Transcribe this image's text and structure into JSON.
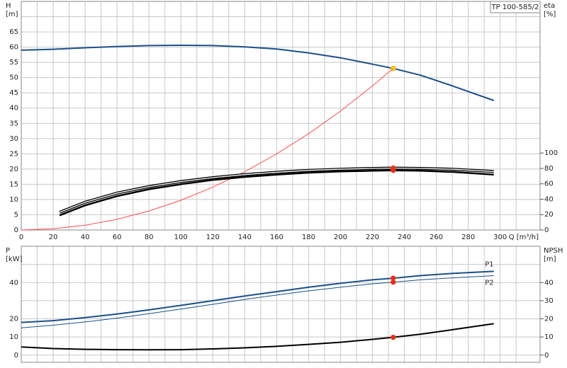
{
  "chart_data": [
    {
      "type": "line",
      "title": "TP 100-585/2",
      "y_label": [
        "H",
        "[m]"
      ],
      "y2_label": [
        "eta",
        "[%]"
      ],
      "x_label": "Q [m³/h]",
      "xlim": [
        0,
        325
      ],
      "xticks": [
        0,
        20,
        40,
        60,
        80,
        100,
        120,
        140,
        160,
        180,
        200,
        220,
        240,
        260,
        280,
        300
      ],
      "x_minor_grid": [
        10,
        30,
        50,
        70,
        90,
        110,
        130,
        150,
        170,
        190,
        210,
        230,
        250,
        270,
        290,
        310
      ],
      "ylim": [
        0,
        75
      ],
      "yticks": [
        0,
        5,
        10,
        15,
        20,
        25,
        30,
        35,
        40,
        45,
        50,
        55,
        60,
        65
      ],
      "y_minor_grid": [
        70
      ],
      "y2lim": [
        0,
        297
      ],
      "y2ticks": [
        0,
        20,
        40,
        60,
        80,
        100
      ],
      "grid": true,
      "series": [
        {
          "color": "#1a4f8a",
          "width": 2,
          "x": [
            0,
            20,
            40,
            60,
            80,
            100,
            120,
            140,
            160,
            180,
            200,
            220,
            233,
            250,
            270,
            296
          ],
          "values": [
            59,
            59.3,
            59.8,
            60.2,
            60.5,
            60.6,
            60.5,
            60.1,
            59.4,
            58.1,
            56.5,
            54.4,
            53,
            50.8,
            47.3,
            42.5
          ],
          "marker": {
            "x": 233,
            "y": 53,
            "color": "#ffd400"
          }
        },
        {
          "color": "#ff4d4d",
          "width": 1,
          "x": [
            0,
            20,
            40,
            60,
            80,
            100,
            120,
            140,
            160,
            180,
            200,
            220,
            233
          ],
          "values": [
            0,
            0.39,
            1.56,
            3.5,
            6.25,
            9.76,
            14.06,
            19.1,
            25,
            31.6,
            39,
            47.3,
            53
          ]
        },
        {
          "color": "#000000",
          "width": 4,
          "double": true,
          "axis": "y2",
          "x": [
            24,
            40,
            60,
            80,
            100,
            120,
            140,
            160,
            180,
            200,
            220,
            233,
            250,
            270,
            296
          ],
          "values": [
            23,
            36,
            48,
            56.5,
            63,
            68,
            72,
            75,
            77.5,
            79,
            80,
            80.5,
            80,
            79,
            76
          ],
          "marker": {
            "x": 233,
            "y": 80.5,
            "color": "#ff2020"
          }
        },
        {
          "color": "#000000",
          "width": 2.5,
          "axis": "y2",
          "x": [
            24,
            40,
            60,
            80,
            100,
            120,
            140,
            160,
            180,
            200,
            220,
            233,
            250,
            270,
            296
          ],
          "values": [
            19,
            32,
            44,
            53,
            59.5,
            65,
            69,
            72,
            74.5,
            76,
            77,
            77.5,
            77,
            75.5,
            72
          ],
          "marker": {
            "x": 233,
            "y": 77.5,
            "color": "#ff2020"
          }
        }
      ]
    },
    {
      "type": "line",
      "y_label": [
        "P",
        "[kW]"
      ],
      "y2_label": [
        "NPSH",
        "[m]"
      ],
      "xlim": [
        0,
        325
      ],
      "x_grid": [
        0,
        20,
        40,
        60,
        80,
        100,
        120,
        140,
        160,
        180,
        200,
        220,
        240,
        260,
        280,
        300
      ],
      "x_minor_grid": [
        10,
        30,
        50,
        70,
        90,
        110,
        130,
        150,
        170,
        190,
        210,
        230,
        250,
        270,
        290,
        310
      ],
      "ylim": [
        -4,
        60
      ],
      "yticks": [
        0,
        10,
        20,
        40
      ],
      "y_minor_grid": [
        30,
        50
      ],
      "y2lim": [
        -4,
        60
      ],
      "y2ticks": [
        0,
        10,
        20,
        30,
        40
      ],
      "grid": true,
      "series": [
        {
          "name": "P1",
          "color": "#1a4f8a",
          "width": 2,
          "x": [
            0,
            20,
            40,
            60,
            80,
            100,
            120,
            140,
            160,
            180,
            200,
            220,
            233,
            250,
            270,
            296
          ],
          "values": [
            18,
            19,
            20.7,
            22.6,
            24.9,
            27.4,
            30,
            32.6,
            35,
            37.4,
            39.6,
            41.5,
            42.4,
            43.8,
            45,
            46.2
          ],
          "marker": {
            "x": 233,
            "y": 42.4,
            "color": "#ff2020"
          }
        },
        {
          "name": "P2",
          "color": "#1a4f8a",
          "width": 1,
          "x": [
            0,
            20,
            40,
            60,
            80,
            100,
            120,
            140,
            160,
            180,
            200,
            220,
            233,
            250,
            270,
            296
          ],
          "values": [
            15,
            16.5,
            18.3,
            20.4,
            22.8,
            25.4,
            28,
            30.7,
            33.1,
            35.4,
            37.4,
            39.3,
            40.2,
            41.5,
            42.6,
            43.8
          ],
          "marker": {
            "x": 233,
            "y": 40.2,
            "color": "#ff2020"
          }
        },
        {
          "color": "#000000",
          "width": 2,
          "axis": "y2",
          "x": [
            0,
            20,
            40,
            60,
            80,
            100,
            120,
            140,
            160,
            180,
            200,
            220,
            233,
            250,
            270,
            296
          ],
          "values": [
            4.5,
            3.6,
            3.2,
            3,
            2.9,
            3,
            3.4,
            4,
            4.8,
            5.9,
            7.1,
            8.7,
            9.8,
            11.5,
            14,
            17.3
          ],
          "marker": {
            "x": 233,
            "y": 9.8,
            "color": "#ff2020"
          }
        }
      ]
    }
  ]
}
